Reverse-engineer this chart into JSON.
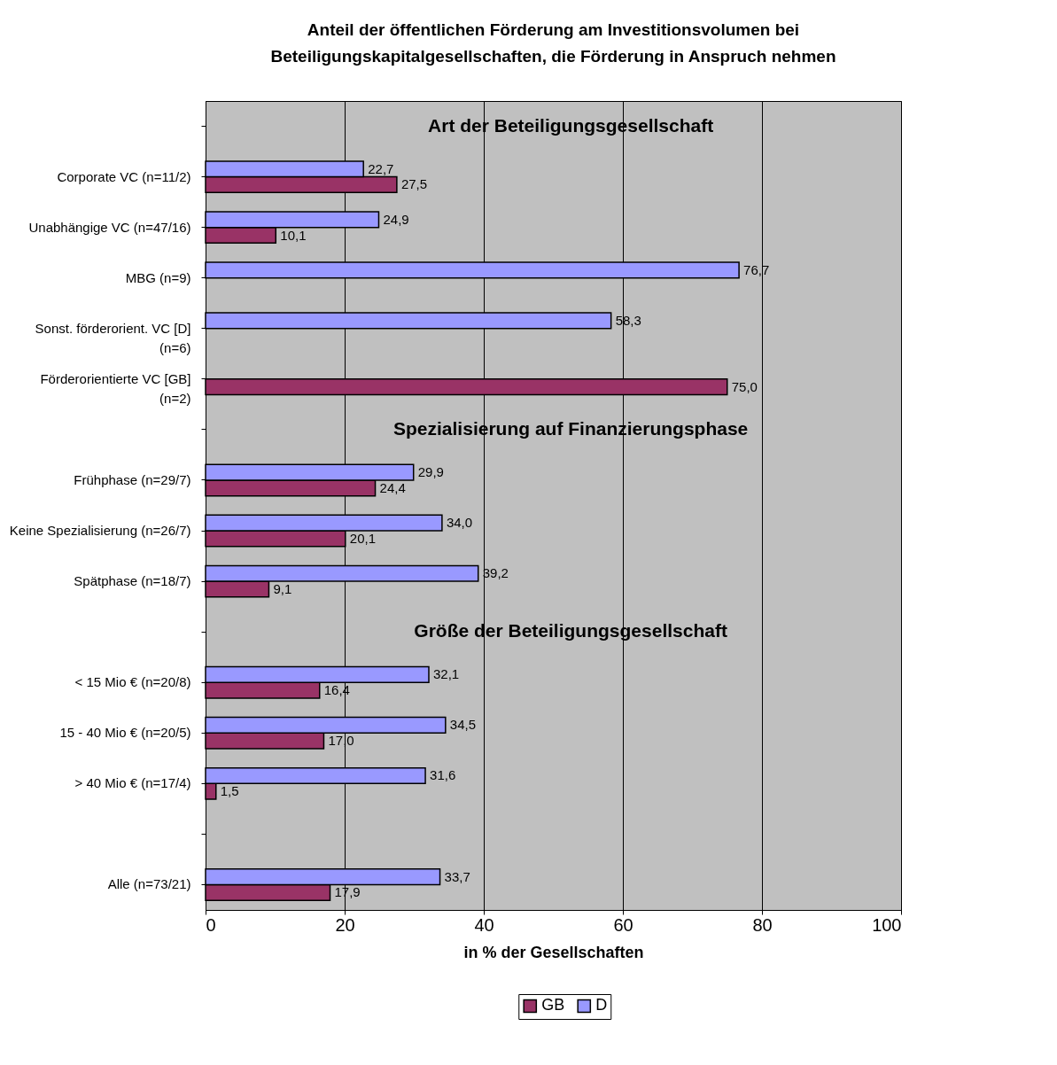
{
  "chart_data": {
    "type": "bar",
    "orientation": "horizontal",
    "title": "Anteil der öffentlichen Förderung am Investitionsvolumen bei\nBeteiligungskapitalgesellschaften, die Förderung in Anspruch nehmen",
    "xlabel": "in % der Gesellschaften",
    "categories": [
      null,
      "Corporate VC (n=11/2)",
      "Unabhängige VC (n=47/16)",
      "MBG (n=9)",
      "Sonst. förderorient. VC [D]\n(n=6)",
      "Förderorientierte VC [GB]\n(n=2)",
      null,
      "Frühphase (n=29/7)",
      "Keine Spezialisierung (n=26/7)",
      "Spätphase (n=18/7)",
      null,
      "< 15 Mio € (n=20/8)",
      "15 - 40 Mio € (n=20/5)",
      "> 40 Mio € (n=17/4)",
      null,
      "Alle (n=73/21)"
    ],
    "annotations": [
      "Art der Beteiligungsgesellschaft",
      "Spezialisierung auf Finanzierungsphase",
      "Größe der Beteiligungsgesellschaft"
    ],
    "series": [
      {
        "name": "GB",
        "color": "#993366",
        "values": [
          null,
          27.5,
          10.1,
          null,
          null,
          75.0,
          null,
          24.4,
          20.1,
          9.1,
          null,
          16.4,
          17.0,
          1.5,
          null,
          17.9
        ],
        "value_labels": [
          null,
          "27,5",
          "10,1",
          null,
          null,
          "75,0",
          null,
          "24,4",
          "20,1",
          "9,1",
          null,
          "16,4",
          "17,0",
          "1,5",
          null,
          "17,9"
        ]
      },
      {
        "name": "D",
        "color": "#9999ff",
        "values": [
          null,
          22.7,
          24.9,
          76.7,
          58.3,
          null,
          null,
          29.9,
          34.0,
          39.2,
          null,
          32.1,
          34.5,
          31.6,
          null,
          33.7
        ],
        "value_labels": [
          null,
          "22,7",
          "24,9",
          "76,7",
          "58,3",
          null,
          null,
          "29,9",
          "34,0",
          "39,2",
          null,
          "32,1",
          "34,5",
          "31,6",
          null,
          "33,7"
        ]
      }
    ],
    "xlim": [
      0,
      100
    ],
    "xticks": [
      0,
      20,
      40,
      60,
      80,
      100
    ],
    "grid": "x",
    "legend": "bottom"
  }
}
